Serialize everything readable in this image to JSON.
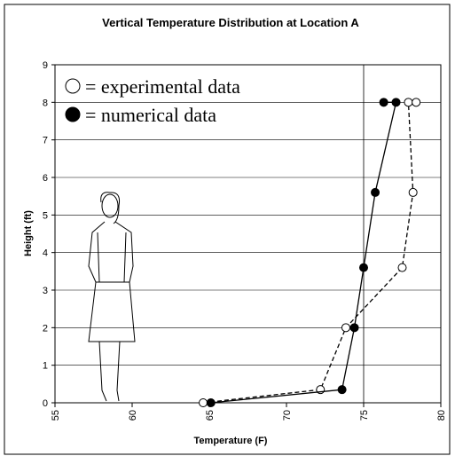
{
  "chart_data": {
    "type": "line",
    "title": "Vertical Temperature Distribution at Location A",
    "x_label": "Temperature (F)",
    "y_label": "Height (ft)",
    "xlim": [
      55,
      80
    ],
    "xticks": [
      55,
      60,
      65,
      70,
      75,
      80
    ],
    "ylim": [
      0,
      9
    ],
    "yticks": [
      0,
      1,
      2,
      3,
      4,
      5,
      6,
      7,
      8,
      9
    ],
    "grid": true,
    "reference_lines_x": [
      75
    ],
    "series": [
      {
        "name": "= experimental data",
        "color": "#000000",
        "marker": "open",
        "dashed": true,
        "x": [
          64.6,
          72.2,
          73.85,
          77.5,
          78.2,
          77.9,
          78.4
        ],
        "values": [
          0,
          0.35,
          2.0,
          3.6,
          5.6,
          8,
          8
        ]
      },
      {
        "name": "= numerical data",
        "color": "#000000",
        "marker": "filled",
        "dashed": false,
        "x": [
          65.1,
          73.6,
          74.4,
          75.0,
          75.75,
          77.1,
          76.3
        ],
        "values": [
          0,
          0.35,
          2.0,
          3.6,
          5.6,
          8,
          8
        ]
      }
    ]
  }
}
